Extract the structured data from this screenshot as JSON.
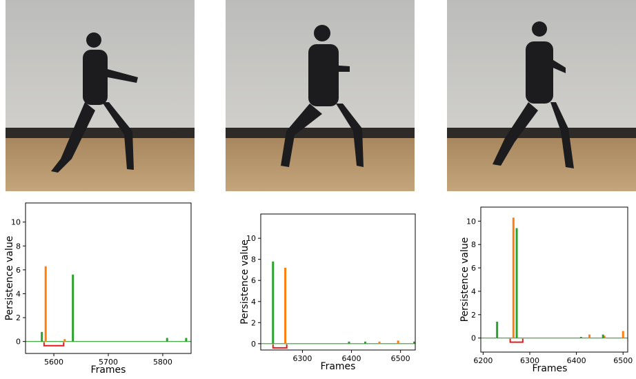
{
  "chart_data": [
    {
      "type": "spike",
      "ylabel": "Persistence value",
      "xlabel": "Frames",
      "xlim": [
        5548,
        5852
      ],
      "xticks": [
        5600,
        5700,
        5800
      ],
      "ylim": [
        -1,
        11.6
      ],
      "yticks": [
        0,
        2,
        4,
        6,
        8,
        10
      ],
      "highlight_range": [
        5582,
        5618
      ],
      "highlight_color": "#e41a1c",
      "series": [
        {
          "color": "#ff7f0e",
          "x": [
            5585,
            5620
          ],
          "values": [
            6.3,
            0.2
          ]
        },
        {
          "color": "#2ca02c",
          "x": [
            5578,
            5635,
            5808,
            5843
          ],
          "values": [
            0.8,
            5.6,
            0.3,
            0.3
          ]
        }
      ]
    },
    {
      "type": "spike",
      "ylabel": "Persistence value",
      "xlabel": "Frames",
      "xlim": [
        6215,
        6530
      ],
      "xticks": [
        6300,
        6400,
        6500
      ],
      "ylim": [
        -0.6,
        12.3
      ],
      "yticks": [
        0,
        2,
        4,
        6,
        8,
        10
      ],
      "highlight_range": [
        6240,
        6268
      ],
      "highlight_color": "#e41a1c",
      "series": [
        {
          "color": "#ff7f0e",
          "x": [
            6265,
            6457,
            6495
          ],
          "values": [
            7.2,
            0.2,
            0.3
          ]
        },
        {
          "color": "#2ca02c",
          "x": [
            6240,
            6395,
            6428,
            6528
          ],
          "values": [
            7.8,
            0.2,
            0.2,
            0.2
          ]
        }
      ]
    },
    {
      "type": "spike",
      "ylabel": "Persistence value",
      "xlabel": "Frames",
      "xlim": [
        6195,
        6510
      ],
      "xticks": [
        6200,
        6300,
        6400,
        6500
      ],
      "ylim": [
        -1.2,
        11.2
      ],
      "yticks": [
        0,
        2,
        4,
        6,
        8,
        10
      ],
      "highlight_range": [
        6258,
        6285
      ],
      "highlight_color": "#e41a1c",
      "series": [
        {
          "color": "#ff7f0e",
          "x": [
            6265,
            6428,
            6460,
            6500
          ],
          "values": [
            10.3,
            0.3,
            0.2,
            0.6
          ]
        },
        {
          "color": "#2ca02c",
          "x": [
            6230,
            6272,
            6410,
            6457
          ],
          "values": [
            1.4,
            9.4,
            0.1,
            0.3
          ]
        }
      ]
    }
  ]
}
